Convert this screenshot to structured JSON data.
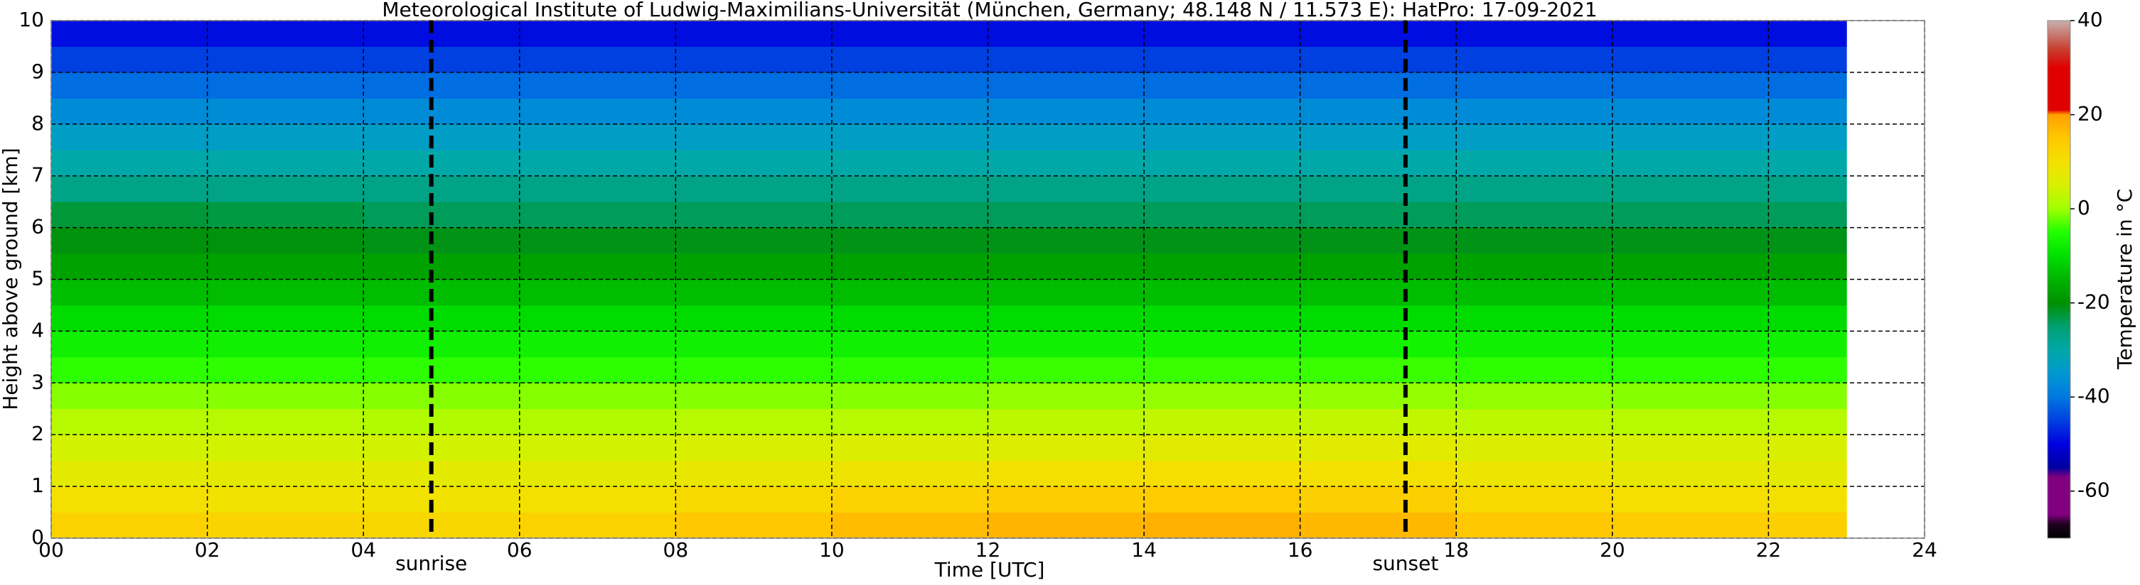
{
  "chart_data": {
    "type": "heatmap",
    "title": "Meteorological Institute of Ludwig-Maximilians-Universität (München, Germany; 48.148 N / 11.573 E):    HatPro: 17-09-2021",
    "x_label": "Time [UTC]",
    "y_label": "Height above ground [km]",
    "colorbar_label": "Temperature in °C",
    "x_edges": [
      0,
      2,
      4,
      6,
      8,
      10,
      12,
      14,
      16,
      18,
      20,
      22,
      23
    ],
    "y_edges": [
      0,
      0.5,
      1,
      1.5,
      2,
      2.5,
      3,
      3.5,
      4,
      4.5,
      5,
      5.5,
      6,
      6.5,
      7,
      7.5,
      8,
      8.5,
      9,
      9.5,
      10
    ],
    "values": [
      [
        13,
        12.5,
        12,
        13,
        15,
        16.5,
        17.5,
        18,
        17,
        15,
        14,
        13.5
      ],
      [
        10,
        9.5,
        9.5,
        10,
        11.5,
        13,
        14,
        14.5,
        13.5,
        11.5,
        10.5,
        10
      ],
      [
        7,
        7,
        7,
        7,
        8,
        9,
        10,
        10.5,
        10,
        8.5,
        7.5,
        7
      ],
      [
        4.5,
        4.5,
        4.5,
        4.5,
        5,
        5.5,
        6,
        6.5,
        6.5,
        5.5,
        5,
        5
      ],
      [
        2,
        2,
        1.5,
        1.5,
        2,
        2,
        2.5,
        3,
        3,
        2.5,
        2,
        2
      ],
      [
        -1,
        -1,
        -1,
        -1,
        -1,
        -1,
        -0.5,
        -0.5,
        -0.5,
        -0.5,
        -1,
        -1
      ],
      [
        -4.5,
        -4.5,
        -4.5,
        -4.5,
        -4.5,
        -4.5,
        -4,
        -4,
        -4,
        -4.5,
        -4.5,
        -4.5
      ],
      [
        -7.5,
        -7.5,
        -7.5,
        -7.5,
        -7.5,
        -7.5,
        -7.5,
        -7,
        -7,
        -7.5,
        -7.5,
        -7.5
      ],
      [
        -10.5,
        -10.5,
        -10.5,
        -10.5,
        -10.5,
        -10.5,
        -10.5,
        -10.5,
        -10.5,
        -10.5,
        -10.5,
        -10.5
      ],
      [
        -14,
        -14,
        -14,
        -14,
        -14,
        -14,
        -14,
        -14,
        -14,
        -14,
        -14,
        -14
      ],
      [
        -17.5,
        -17.5,
        -17.5,
        -17.5,
        -17.5,
        -17.5,
        -17.5,
        -17.5,
        -17.5,
        -17.5,
        -17.5,
        -17.5
      ],
      [
        -20.5,
        -20.5,
        -21,
        -21,
        -21,
        -21,
        -21,
        -21,
        -21,
        -21,
        -21,
        -21
      ],
      [
        -22.5,
        -23,
        -24,
        -24,
        -24,
        -24,
        -24,
        -24,
        -24,
        -24,
        -24,
        -24
      ],
      [
        -27,
        -27,
        -27,
        -27,
        -27,
        -27,
        -27,
        -27,
        -27,
        -27,
        -27,
        -27
      ],
      [
        -30,
        -30,
        -30,
        -30,
        -30,
        -30,
        -30,
        -30,
        -30,
        -30,
        -30,
        -30
      ],
      [
        -33.5,
        -33.5,
        -33.5,
        -33.5,
        -33.5,
        -33.5,
        -33.5,
        -33.5,
        -33.5,
        -33.5,
        -33.5,
        -33.5
      ],
      [
        -37,
        -37,
        -37,
        -37,
        -37,
        -37,
        -37,
        -37,
        -37,
        -37,
        -37,
        -37
      ],
      [
        -41,
        -41,
        -41,
        -41,
        -41,
        -41,
        -41,
        -41,
        -41,
        -41,
        -41,
        -41
      ],
      [
        -45,
        -45,
        -45,
        -45,
        -45,
        -45,
        -45,
        -45,
        -45,
        -45,
        -45,
        -45
      ],
      [
        -49,
        -49,
        -49,
        -49,
        -49,
        -49,
        -49,
        -49,
        -49,
        -49,
        -49,
        -49
      ]
    ],
    "xlim": [
      0,
      24
    ],
    "ylim": [
      0,
      10
    ],
    "xticks": [
      {
        "value": 0,
        "label": "00"
      },
      {
        "value": 2,
        "label": "02"
      },
      {
        "value": 4,
        "label": "04"
      },
      {
        "value": 6,
        "label": "06"
      },
      {
        "value": 8,
        "label": "08"
      },
      10,
      12,
      14,
      16,
      18,
      20,
      22,
      24
    ],
    "yticks": [
      0,
      1,
      2,
      3,
      4,
      5,
      6,
      7,
      8,
      9,
      10
    ],
    "clim": [
      -70,
      40
    ],
    "cticks": [
      -60,
      -40,
      -20,
      0,
      20,
      40
    ],
    "colorscale": [
      [
        -70,
        "#000000"
      ],
      [
        -67,
        "#200020"
      ],
      [
        -65,
        "#800080"
      ],
      [
        -57,
        "#800080"
      ],
      [
        -55,
        "#0000a0"
      ],
      [
        -50,
        "#0000e0"
      ],
      [
        -45,
        "#0040e0"
      ],
      [
        -40,
        "#0078e0"
      ],
      [
        -35,
        "#0098d0"
      ],
      [
        -30,
        "#00a8a8"
      ],
      [
        -25,
        "#00a070"
      ],
      [
        -20,
        "#009000"
      ],
      [
        -15,
        "#00b400"
      ],
      [
        -10,
        "#00e000"
      ],
      [
        -5,
        "#20ff00"
      ],
      [
        0,
        "#a0ff00"
      ],
      [
        5,
        "#d8f000"
      ],
      [
        10,
        "#f4e000"
      ],
      [
        15,
        "#ffc800"
      ],
      [
        20,
        "#ffa000"
      ],
      [
        21,
        "#e00000"
      ],
      [
        30,
        "#e00000"
      ],
      [
        34,
        "#c84030"
      ],
      [
        40,
        "#c8b0b0"
      ]
    ],
    "grid": true,
    "annotations": [
      {
        "x": 4.87,
        "label": "sunrise"
      },
      {
        "x": 17.35,
        "label": "sunset"
      }
    ]
  }
}
